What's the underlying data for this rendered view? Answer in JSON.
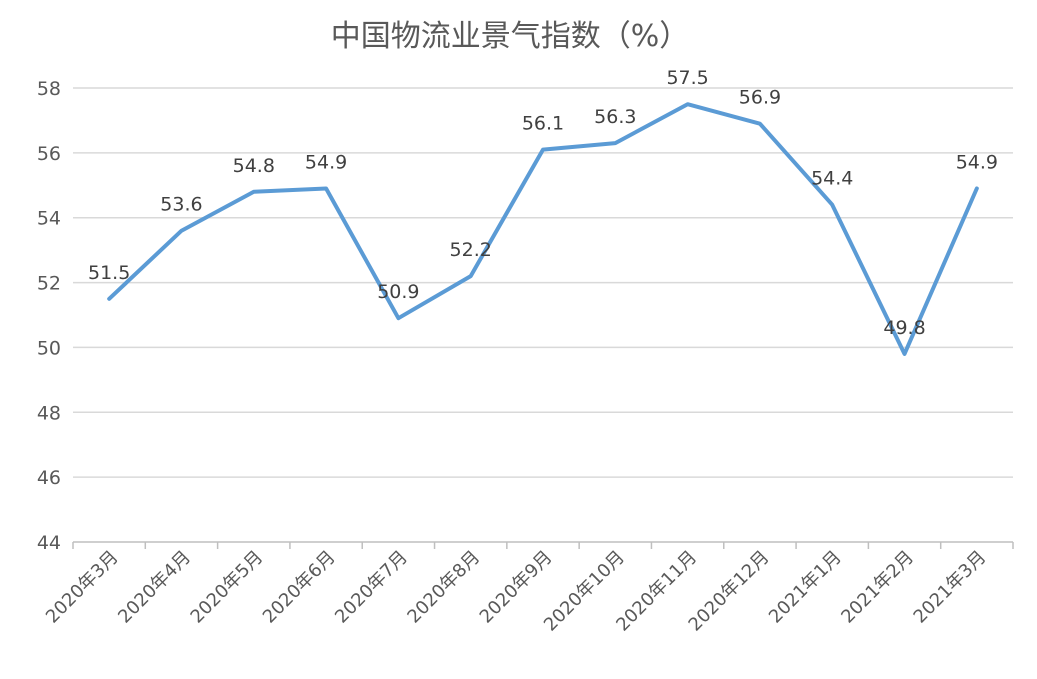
{
  "chart_data": {
    "type": "line",
    "title": "中国物流业景气指数（%）",
    "categories": [
      "2020年3月",
      "2020年4月",
      "2020年5月",
      "2020年6月",
      "2020年7月",
      "2020年8月",
      "2020年9月",
      "2020年10月",
      "2020年11月",
      "2020年12月",
      "2021年1月",
      "2021年2月",
      "2021年3月"
    ],
    "series": [
      {
        "values": [
          51.5,
          53.6,
          54.8,
          54.9,
          50.9,
          52.2,
          56.1,
          56.3,
          57.5,
          56.9,
          54.4,
          49.8,
          54.9
        ]
      }
    ],
    "data_labels": [
      "51.5",
      "53.6",
      "54.8",
      "54.9",
      "50.9",
      "52.2",
      "56.1",
      "56.3",
      "57.5",
      "56.9",
      "54.4",
      "49.8",
      "54.9"
    ],
    "y_ticks": [
      "44",
      "46",
      "48",
      "50",
      "52",
      "54",
      "56",
      "58"
    ],
    "ylim": [
      44,
      58
    ],
    "grid": true,
    "legend": "none",
    "line_color": "#5b9bd5"
  }
}
